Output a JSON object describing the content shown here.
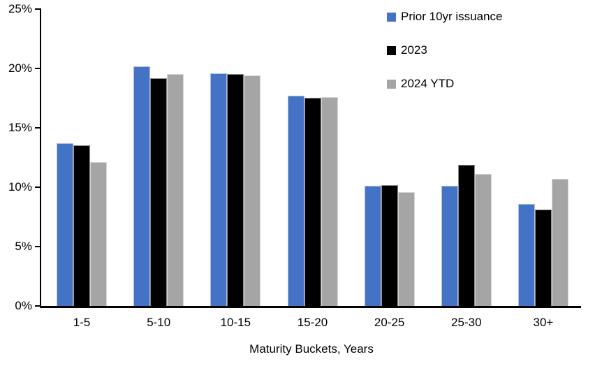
{
  "chart_data": {
    "type": "bar",
    "title": "",
    "xlabel": "Maturity Buckets, Years",
    "ylabel": "",
    "categories": [
      "1-5",
      "5-10",
      "10-15",
      "15-20",
      "20-25",
      "25-30",
      "30+"
    ],
    "series": [
      {
        "name": "Prior 10yr issuance",
        "color": "#4472C4",
        "values": [
          13.7,
          20.2,
          19.6,
          17.7,
          10.1,
          10.1,
          8.6
        ]
      },
      {
        "name": "2023",
        "color": "#000000",
        "values": [
          13.5,
          19.2,
          19.5,
          17.5,
          10.2,
          11.9,
          8.1
        ]
      },
      {
        "name": "2024 YTD",
        "color": "#A5A5A5",
        "values": [
          12.1,
          19.5,
          19.4,
          17.6,
          9.6,
          11.1,
          10.7
        ]
      }
    ],
    "ylim": [
      0,
      25
    ],
    "y_ticks": [
      0,
      5,
      10,
      15,
      20,
      25
    ],
    "y_tick_labels": [
      "0%",
      "5%",
      "10%",
      "15%",
      "20%",
      "25%"
    ],
    "grid": false,
    "legend_position": "top-right"
  }
}
